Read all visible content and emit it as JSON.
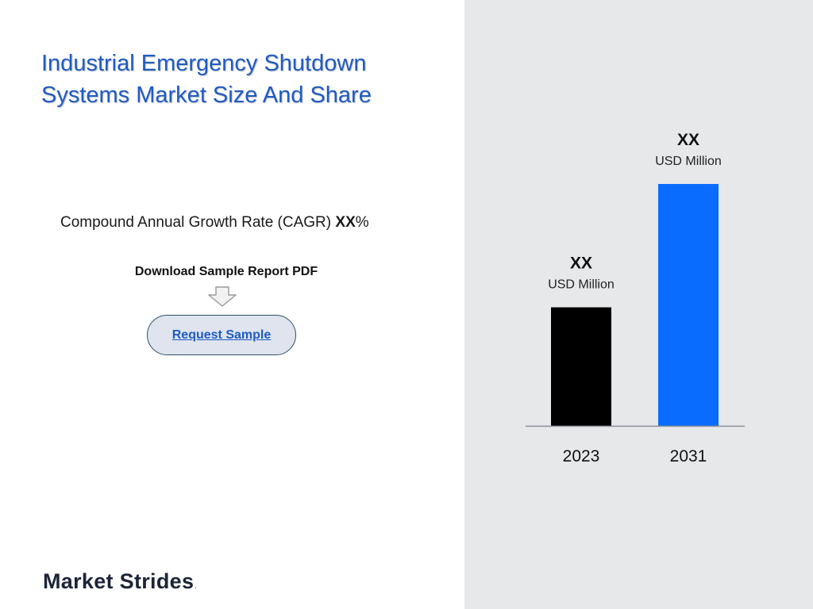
{
  "title_lines": [
    "Industrial Emergency Shutdown",
    "Systems Market Size And Share"
  ],
  "cagr": {
    "label": "Compound Annual Growth Rate (CAGR) ",
    "value": "XX",
    "suffix": "%"
  },
  "download": {
    "label": "Download Sample Report PDF"
  },
  "request_button": {
    "label": "Request Sample"
  },
  "brand": {
    "name": "Market Strides",
    "mark": "."
  },
  "colors": {
    "title": "#1f5bc4",
    "right_panel": "#e7e8ea",
    "bar_2023": "#000000",
    "bar_2031": "#0a6cff",
    "button_fill": "#dfe4ee",
    "button_border": "#2f4f66"
  },
  "chart_data": {
    "type": "bar",
    "categories": [
      "2023",
      "2031"
    ],
    "values": [
      49,
      100
    ],
    "value_labels": [
      "XX",
      "XX"
    ],
    "unit_labels": [
      "USD Million",
      "USD Million"
    ],
    "bar_colors": [
      "#000000",
      "#0a6cff"
    ],
    "title": "",
    "xlabel": "",
    "ylabel": "",
    "ylim": [
      0,
      100
    ],
    "grid": false,
    "legend": "none"
  }
}
